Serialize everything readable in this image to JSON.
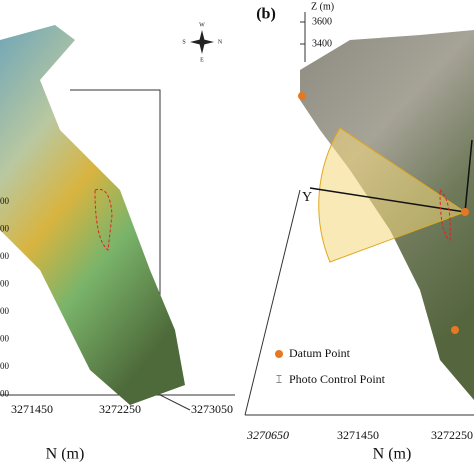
{
  "compass": {
    "north": "N",
    "south": "S",
    "east": "E",
    "west": "W"
  },
  "left_panel": {
    "z_tick_labels": [
      "00",
      "00",
      "00",
      "00",
      "00",
      "00",
      "00",
      "00"
    ],
    "x_tick_labels": [
      "3271450",
      "3272250",
      "3273050"
    ],
    "x_axis_label": "N (m)"
  },
  "right_panel": {
    "panel_label": "(b)",
    "z_axis_label": "Z (m)",
    "z_tick_labels": [
      "3600",
      "3400"
    ],
    "y_axis_label": "Y",
    "legend": [
      "Datum Point",
      "Photo Control Point"
    ],
    "x_tick_labels": [
      "3270650",
      "3271450",
      "3272250"
    ],
    "x_axis_label": "N (m)"
  }
}
